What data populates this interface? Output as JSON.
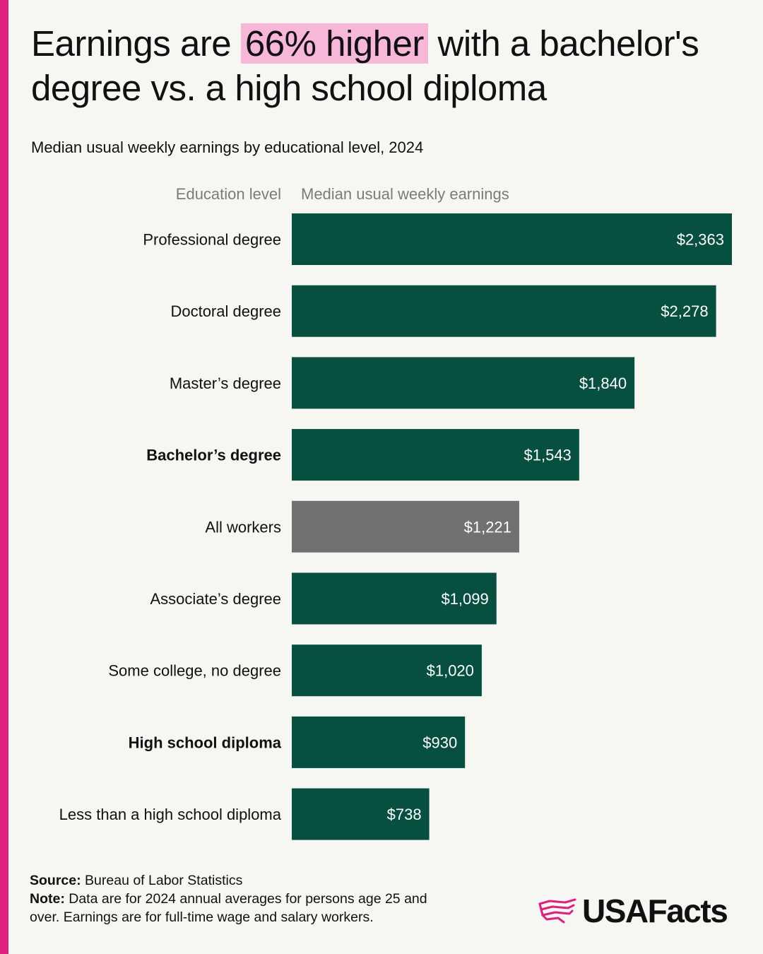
{
  "header": {
    "title_pre": "Earnings are",
    "title_highlight": "66% higher",
    "title_post": "with a bachelor's degree vs. a high school diploma",
    "subtitle": "Median usual weekly earnings by educational level, 2024"
  },
  "columns": {
    "left": "Education level",
    "right": "Median usual weekly earnings"
  },
  "chart_data": {
    "type": "bar",
    "orientation": "horizontal",
    "categories": [
      "Professional degree",
      "Doctoral degree",
      "Master’s degree",
      "Bachelor’s degree",
      "All workers",
      "Associate’s degree",
      "Some college, no degree",
      "High school diploma",
      "Less than a high school diploma"
    ],
    "values": [
      2363,
      2278,
      1840,
      1543,
      1221,
      1099,
      1020,
      930,
      738
    ],
    "value_labels": [
      "$2,363",
      "$2,278",
      "$1,840",
      "$1,543",
      "$1,221",
      "$1,099",
      "$1,020",
      "$930",
      "$738"
    ],
    "bold_categories": [
      "Bachelor’s degree",
      "High school diploma"
    ],
    "highlight_category": "All workers",
    "colors": {
      "bar": "#075040",
      "highlight": "#717171",
      "label": "#ffffff"
    },
    "title": "Median usual weekly earnings by educational level, 2024",
    "xlabel": "",
    "ylabel": "",
    "xlim": [
      0,
      2363
    ]
  },
  "footer": {
    "source_label": "Source:",
    "source_text": "Bureau of Labor Statistics",
    "note_label": "Note:",
    "note_text": "Data are for 2024 annual averages for persons age 25 and over. Earnings are for full-time wage and salary workers."
  },
  "brand": {
    "name": "USAFacts",
    "icon": "usa-map-flag-icon",
    "icon_color": "#e0207f"
  }
}
